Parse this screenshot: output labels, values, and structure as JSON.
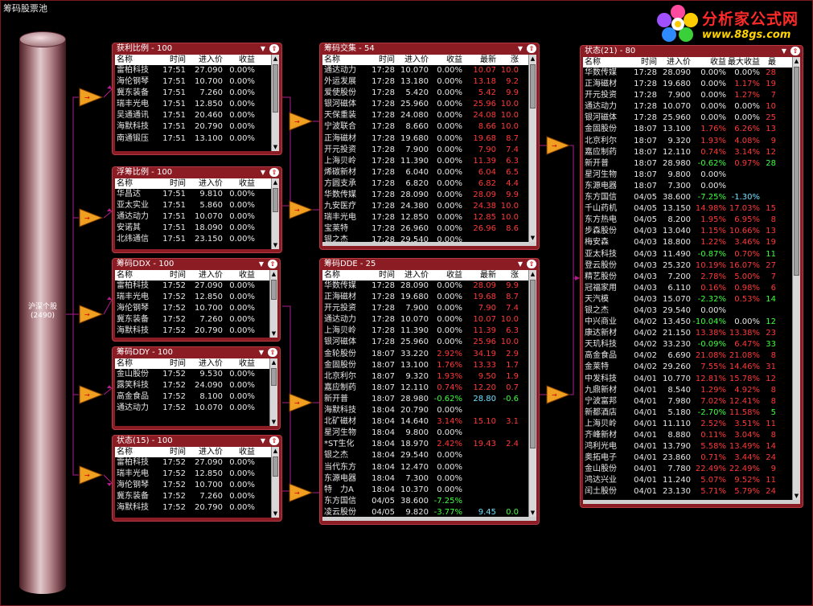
{
  "window_title": "筹码股票池",
  "logo": {
    "title": "分析家公式网",
    "url": "www.88gs.com"
  },
  "source": {
    "label": "沪深个股",
    "count": "(2490)"
  },
  "panels": {
    "p1": {
      "title": "获利比例 - 100",
      "cols": [
        "名称",
        "时间",
        "进入价",
        "收益"
      ],
      "rows": [
        [
          "雷柏科技",
          "17:51",
          "27.090",
          "0.00%"
        ],
        [
          "海伦钢琴",
          "17:51",
          "10.700",
          "0.00%"
        ],
        [
          "冀东装备",
          "17:51",
          "7.260",
          "0.00%"
        ],
        [
          "瑞丰光电",
          "17:51",
          "12.850",
          "0.00%"
        ],
        [
          "吴通通讯",
          "17:51",
          "20.460",
          "0.00%"
        ],
        [
          "海默科技",
          "17:51",
          "20.790",
          "0.00%"
        ],
        [
          "南通锻压",
          "17:51",
          "13.100",
          "0.00%"
        ]
      ]
    },
    "p2": {
      "title": "浮筹比例 - 100",
      "cols": [
        "名称",
        "时间",
        "进入价",
        "收益"
      ],
      "rows": [
        [
          "华昌达",
          "17:51",
          "9.810",
          "0.00%"
        ],
        [
          "亚太实业",
          "17:51",
          "5.860",
          "0.00%"
        ],
        [
          "通达动力",
          "17:51",
          "10.070",
          "0.00%"
        ],
        [
          "安诺其",
          "17:51",
          "18.090",
          "0.00%"
        ],
        [
          "北纬通信",
          "17:51",
          "23.150",
          "0.00%"
        ]
      ]
    },
    "p3": {
      "title": "筹码DDX - 100",
      "cols": [
        "名称",
        "时间",
        "进入价",
        "收益"
      ],
      "rows": [
        [
          "雷柏科技",
          "17:52",
          "27.090",
          "0.00%"
        ],
        [
          "瑞丰光电",
          "17:52",
          "12.850",
          "0.00%"
        ],
        [
          "海伦钢琴",
          "17:52",
          "10.700",
          "0.00%"
        ],
        [
          "冀东装备",
          "17:52",
          "7.260",
          "0.00%"
        ],
        [
          "海默科技",
          "17:52",
          "20.790",
          "0.00%"
        ]
      ]
    },
    "p4": {
      "title": "筹码DDY - 100",
      "cols": [
        "名称",
        "时间",
        "进入价",
        "收益"
      ],
      "rows": [
        [
          "金山股份",
          "17:52",
          "9.530",
          "0.00%"
        ],
        [
          "露笑科技",
          "17:52",
          "24.090",
          "0.00%"
        ],
        [
          "高金食品",
          "17:52",
          "8.100",
          "0.00%"
        ],
        [
          "通达动力",
          "17:52",
          "10.070",
          "0.00%"
        ]
      ]
    },
    "p5": {
      "title": "状态(15) - 100",
      "cols": [
        "名称",
        "时间",
        "进入价",
        "收益"
      ],
      "rows": [
        [
          "雷柏科技",
          "17:52",
          "27.090",
          "0.00%"
        ],
        [
          "瑞丰光电",
          "17:52",
          "12.850",
          "0.00%"
        ],
        [
          "海伦钢琴",
          "17:52",
          "10.700",
          "0.00%"
        ],
        [
          "冀东装备",
          "17:52",
          "7.260",
          "0.00%"
        ],
        [
          "海默科技",
          "17:52",
          "20.790",
          "0.00%"
        ]
      ]
    },
    "p6": {
      "title": "筹码交集 - 54",
      "cols": [
        "名称",
        "时间",
        "进入价",
        "收益",
        "最新",
        "涨"
      ],
      "rows": [
        [
          "通达动力",
          "17:28",
          "10.070",
          "0.00%",
          "10.07",
          "10.0"
        ],
        [
          "外运发展",
          "17:28",
          "13.180",
          "0.00%",
          "13.18",
          "9.2"
        ],
        [
          "爱使股份",
          "17:28",
          "5.420",
          "0.00%",
          "5.42",
          "9.9"
        ],
        [
          "银河磁体",
          "17:28",
          "25.960",
          "0.00%",
          "25.96",
          "10.0"
        ],
        [
          "天保重装",
          "17:28",
          "24.080",
          "0.00%",
          "24.08",
          "10.0"
        ],
        [
          "宁波联合",
          "17:28",
          "8.660",
          "0.00%",
          "8.66",
          "10.0"
        ],
        [
          "正海磁材",
          "17:28",
          "19.680",
          "0.00%",
          "19.68",
          "8.7"
        ],
        [
          "开元投资",
          "17:28",
          "7.900",
          "0.00%",
          "7.90",
          "7.4"
        ],
        [
          "上海贝岭",
          "17:28",
          "11.390",
          "0.00%",
          "11.39",
          "6.3"
        ],
        [
          "烯碳新材",
          "17:28",
          "6.040",
          "0.00%",
          "6.04",
          "6.5"
        ],
        [
          "方圆支承",
          "17:28",
          "6.820",
          "0.00%",
          "6.82",
          "4.4"
        ],
        [
          "华数传媒",
          "17:28",
          "28.090",
          "0.00%",
          "28.09",
          "9.9"
        ],
        [
          "九安医疗",
          "17:28",
          "24.380",
          "0.00%",
          "24.38",
          "10.0"
        ],
        [
          "瑞丰光电",
          "17:28",
          "12.850",
          "0.00%",
          "12.85",
          "10.0"
        ],
        [
          "宝莱特",
          "17:28",
          "26.960",
          "0.00%",
          "26.96",
          "8.6"
        ],
        [
          "银之杰",
          "17:28",
          "29.540",
          "0.00%",
          "",
          ""
        ]
      ]
    },
    "p7": {
      "title": "筹码DDE - 25",
      "cols": [
        "名称",
        "时间",
        "进入价",
        "收益",
        "最新",
        "涨"
      ],
      "rows": [
        [
          "华数传媒",
          "17:28",
          "28.090",
          "0.00%",
          "28.09",
          "9.9"
        ],
        [
          "正海磁材",
          "17:28",
          "19.680",
          "0.00%",
          "19.68",
          "8.7"
        ],
        [
          "开元投资",
          "17:28",
          "7.900",
          "0.00%",
          "7.90",
          "7.4"
        ],
        [
          "通达动力",
          "17:28",
          "10.070",
          "0.00%",
          "10.07",
          "10.0"
        ],
        [
          "上海贝岭",
          "17:28",
          "11.390",
          "0.00%",
          "11.39",
          "6.3"
        ],
        [
          "银河磁体",
          "17:28",
          "25.960",
          "0.00%",
          "25.96",
          "10.0"
        ],
        [
          "金轮股份",
          "18:07",
          "33.220",
          "2.92%",
          "34.19",
          "2.9"
        ],
        [
          "金固股份",
          "18:07",
          "13.100",
          "1.76%",
          "13.33",
          "1.7"
        ],
        [
          "北京利尔",
          "18:07",
          "9.320",
          "1.93%",
          "9.50",
          "1.9"
        ],
        [
          "嘉应制药",
          "18:07",
          "12.110",
          "0.74%",
          "12.20",
          "0.7"
        ],
        [
          "新开普",
          "18:07",
          "28.980",
          "-0.62%",
          "28.80",
          "-0.6"
        ],
        [
          "海默科技",
          "18:04",
          "20.790",
          "0.00%",
          "",
          ""
        ],
        [
          "北矿磁材",
          "18:04",
          "14.640",
          "3.14%",
          "15.10",
          "3.1"
        ],
        [
          "星河生物",
          "18:04",
          "9.800",
          "0.00%",
          "",
          ""
        ],
        [
          "*ST生化",
          "18:04",
          "18.970",
          "2.42%",
          "19.43",
          "2.4"
        ],
        [
          "银之杰",
          "18:04",
          "29.540",
          "0.00%",
          "",
          ""
        ],
        [
          "当代东方",
          "18:04",
          "12.470",
          "0.00%",
          "",
          ""
        ],
        [
          "东源电器",
          "18:04",
          "7.300",
          "0.00%",
          "",
          ""
        ],
        [
          "特　力A",
          "18:04",
          "10.370",
          "0.00%",
          "",
          ""
        ],
        [
          "东方国信",
          "04/05",
          "38.600",
          "-7.25%",
          "",
          ""
        ],
        [
          "凌云股份",
          "04/05",
          "9.820",
          "-3.77%",
          "9.45",
          "0.0"
        ]
      ]
    },
    "p8": {
      "title": "状态(21) - 80",
      "cols": [
        "名称",
        "时间",
        "进入价",
        "收益",
        "最大收益",
        "最"
      ],
      "rows": [
        [
          "华数传媒",
          "17:28",
          "28.090",
          "0.00%",
          "0.00%",
          "28"
        ],
        [
          "正海磁材",
          "17:28",
          "19.680",
          "0.00%",
          "1.17%",
          "19"
        ],
        [
          "开元投资",
          "17:28",
          "7.900",
          "0.00%",
          "1.27%",
          "7"
        ],
        [
          "通达动力",
          "17:28",
          "10.070",
          "0.00%",
          "0.00%",
          "10"
        ],
        [
          "银河磁体",
          "17:28",
          "25.960",
          "0.00%",
          "0.00%",
          "25"
        ],
        [
          "金固股份",
          "18:07",
          "13.100",
          "1.76%",
          "6.26%",
          "13"
        ],
        [
          "北京利尔",
          "18:07",
          "9.320",
          "1.93%",
          "4.08%",
          "9"
        ],
        [
          "嘉应制药",
          "18:07",
          "12.110",
          "0.74%",
          "3.14%",
          "12"
        ],
        [
          "新开普",
          "18:07",
          "28.980",
          "-0.62%",
          "0.97%",
          "28"
        ],
        [
          "星河生物",
          "18:07",
          "9.800",
          "0.00%",
          "",
          ""
        ],
        [
          "东源电器",
          "18:07",
          "7.300",
          "0.00%",
          "",
          ""
        ],
        [
          "东方国信",
          "04/05",
          "38.600",
          "-7.25%",
          "-1.30%",
          ""
        ],
        [
          "千山药机",
          "04/05",
          "13.150",
          "14.98%",
          "17.03%",
          "15"
        ],
        [
          "东方热电",
          "04/05",
          "8.200",
          "1.95%",
          "6.95%",
          "8"
        ],
        [
          "步森股份",
          "04/03",
          "13.040",
          "1.15%",
          "10.66%",
          "13"
        ],
        [
          "梅安森",
          "04/03",
          "18.800",
          "1.22%",
          "3.46%",
          "19"
        ],
        [
          "亚太科技",
          "04/03",
          "11.490",
          "-0.87%",
          "0.70%",
          "11"
        ],
        [
          "登云股份",
          "04/03",
          "25.320",
          "10.19%",
          "16.07%",
          "27"
        ],
        [
          "精艺股份",
          "04/03",
          "7.200",
          "2.78%",
          "5.00%",
          "7"
        ],
        [
          "冠福家用",
          "04/03",
          "6.110",
          "0.16%",
          "0.98%",
          "6"
        ],
        [
          "天汽模",
          "04/03",
          "15.070",
          "-2.32%",
          "0.53%",
          "14"
        ],
        [
          "银之杰",
          "04/03",
          "29.540",
          "0.00%",
          "",
          ""
        ],
        [
          "中兴商业",
          "04/02",
          "13.450",
          "-10.04%",
          "0.00%",
          "12"
        ],
        [
          "康达新材",
          "04/02",
          "21.150",
          "13.38%",
          "13.38%",
          "23"
        ],
        [
          "天玑科技",
          "04/02",
          "33.230",
          "-0.09%",
          "6.47%",
          "33"
        ],
        [
          "高金食品",
          "04/02",
          "6.690",
          "21.08%",
          "21.08%",
          "8"
        ],
        [
          "金莱特",
          "04/02",
          "29.260",
          "7.55%",
          "14.46%",
          "31"
        ],
        [
          "中发科技",
          "04/01",
          "10.770",
          "12.81%",
          "15.78%",
          "12"
        ],
        [
          "九鼎新材",
          "04/01",
          "8.540",
          "1.29%",
          "4.92%",
          "8"
        ],
        [
          "宁波富邦",
          "04/01",
          "7.980",
          "7.02%",
          "12.41%",
          "8"
        ],
        [
          "新都酒店",
          "04/01",
          "5.180",
          "-2.70%",
          "11.58%",
          "5"
        ],
        [
          "上海贝岭",
          "04/01",
          "11.110",
          "2.52%",
          "3.51%",
          "11"
        ],
        [
          "齐峰新材",
          "04/01",
          "8.880",
          "0.11%",
          "3.04%",
          "8"
        ],
        [
          "鸿利光电",
          "04/01",
          "13.790",
          "5.58%",
          "13.49%",
          "14"
        ],
        [
          "奥拓电子",
          "04/01",
          "23.860",
          "0.71%",
          "3.44%",
          "24"
        ],
        [
          "金山股份",
          "04/01",
          "7.780",
          "22.49%",
          "22.49%",
          "9"
        ],
        [
          "鸿达兴业",
          "04/01",
          "11.240",
          "5.07%",
          "9.52%",
          "11"
        ],
        [
          "闰土股份",
          "04/01",
          "23.130",
          "5.71%",
          "5.79%",
          "24"
        ]
      ]
    }
  },
  "colors": {
    "panel_bg": "#8c1c24",
    "flow_line": "#b01c8c",
    "arrow_fill": "#f0a020",
    "profit": "#ff3838",
    "loss": "#3cff3c"
  }
}
